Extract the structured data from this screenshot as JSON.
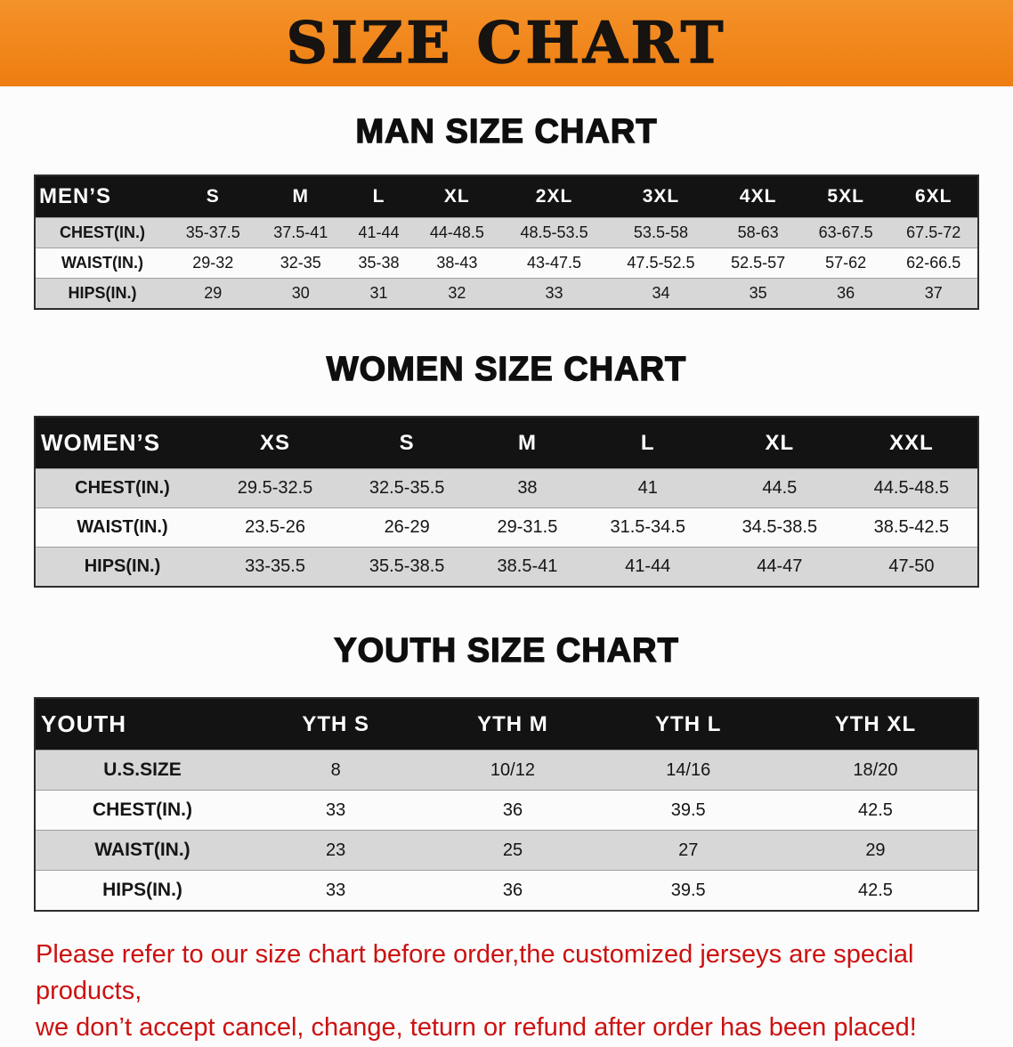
{
  "banner": {
    "title": "SIZE CHART",
    "bg_color": "#EF7F14"
  },
  "colors": {
    "table_header_bg": "#131313",
    "row_stripe_gray": "#D7D7D7",
    "disclaimer_red": "#CC1111"
  },
  "sections": [
    {
      "heading": "MAN SIZE CHART",
      "table": {
        "header": [
          "MEN’S",
          "S",
          "M",
          "L",
          "XL",
          "2XL",
          "3XL",
          "4XL",
          "5XL",
          "6XL"
        ],
        "rows": [
          {
            "label": "CHEST(IN.)",
            "values": [
              "35-37.5",
              "37.5-41",
              "41-44",
              "44-48.5",
              "48.5-53.5",
              "53.5-58",
              "58-63",
              "63-67.5",
              "67.5-72"
            ]
          },
          {
            "label": "WAIST(IN.)",
            "values": [
              "29-32",
              "32-35",
              "35-38",
              "38-43",
              "43-47.5",
              "47.5-52.5",
              "52.5-57",
              "57-62",
              "62-66.5"
            ]
          },
          {
            "label": "HIPS(IN.)",
            "values": [
              "29",
              "30",
              "31",
              "32",
              "33",
              "34",
              "35",
              "36",
              "37"
            ]
          }
        ]
      }
    },
    {
      "heading": "WOMEN SIZE CHART",
      "table": {
        "header": [
          "WOMEN’S",
          "XS",
          "S",
          "M",
          "L",
          "XL",
          "XXL"
        ],
        "rows": [
          {
            "label": "CHEST(IN.)",
            "values": [
              "29.5-32.5",
              "32.5-35.5",
              "38",
              "41",
              "44.5",
              "44.5-48.5"
            ]
          },
          {
            "label": "WAIST(IN.)",
            "values": [
              "23.5-26",
              "26-29",
              "29-31.5",
              "31.5-34.5",
              "34.5-38.5",
              "38.5-42.5"
            ]
          },
          {
            "label": "HIPS(IN.)",
            "values": [
              "33-35.5",
              "35.5-38.5",
              "38.5-41",
              "41-44",
              "44-47",
              "47-50"
            ]
          }
        ]
      }
    },
    {
      "heading": "YOUTH SIZE CHART",
      "table": {
        "header": [
          "YOUTH",
          "YTH S",
          "YTH M",
          "YTH L",
          "YTH XL"
        ],
        "rows": [
          {
            "label": "U.S.SIZE",
            "values": [
              "8",
              "10/12",
              "14/16",
              "18/20"
            ]
          },
          {
            "label": "CHEST(IN.)",
            "values": [
              "33",
              "36",
              "39.5",
              "42.5"
            ]
          },
          {
            "label": "WAIST(IN.)",
            "values": [
              "23",
              "25",
              "27",
              "29"
            ]
          },
          {
            "label": "HIPS(IN.)",
            "values": [
              "33",
              "36",
              "39.5",
              "42.5"
            ]
          }
        ]
      }
    }
  ],
  "disclaimer": {
    "lines": [
      "Please refer to our size chart before order,the customized jerseys are special products,",
      "we don’t accept cancel, change, teturn or refund after order has been placed!"
    ]
  }
}
